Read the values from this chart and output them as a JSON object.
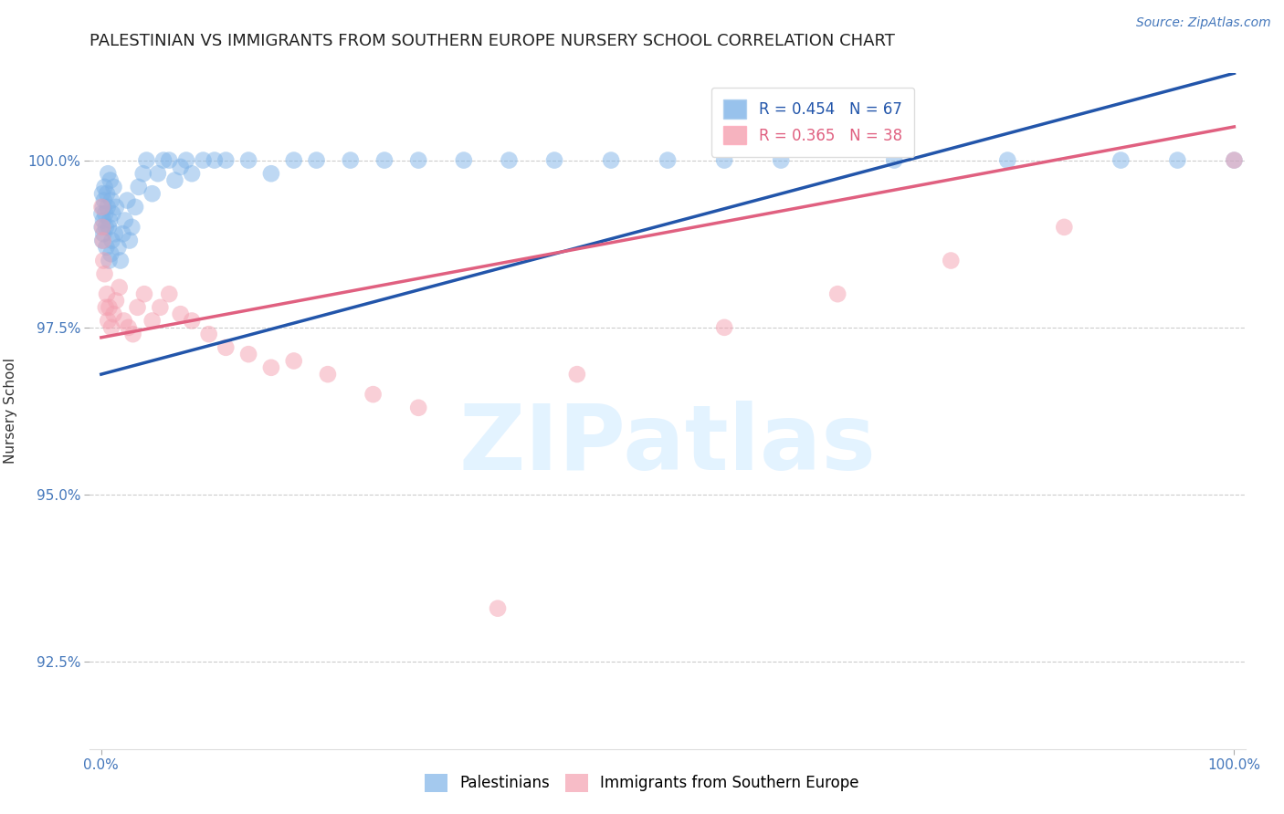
{
  "title": "PALESTINIAN VS IMMIGRANTS FROM SOUTHERN EUROPE NURSERY SCHOOL CORRELATION CHART",
  "source_text": "Source: ZipAtlas.com",
  "ylabel": "Nursery School",
  "xlim": [
    -1,
    101
  ],
  "ylim": [
    91.2,
    101.3
  ],
  "yticks": [
    92.5,
    95.0,
    97.5,
    100.0
  ],
  "ytick_labels": [
    "92.5%",
    "95.0%",
    "97.5%",
    "100.0%"
  ],
  "xtick_positions": [
    0,
    100
  ],
  "xtick_labels": [
    "0.0%",
    "100.0%"
  ],
  "blue_color": "#7EB3E8",
  "pink_color": "#F4A0B0",
  "blue_line_color": "#2255AA",
  "pink_line_color": "#E06080",
  "R_blue": 0.454,
  "N_blue": 67,
  "R_pink": 0.365,
  "N_pink": 38,
  "blue_line_x0": 0,
  "blue_line_y0": 96.8,
  "blue_line_x1": 100,
  "blue_line_y1": 101.3,
  "pink_line_x0": 0,
  "pink_line_y0": 97.35,
  "pink_line_x1": 100,
  "pink_line_y1": 100.5,
  "blue_scatter_x": [
    0.05,
    0.07,
    0.1,
    0.12,
    0.15,
    0.18,
    0.2,
    0.25,
    0.3,
    0.35,
    0.4,
    0.45,
    0.5,
    0.55,
    0.6,
    0.65,
    0.7,
    0.75,
    0.8,
    0.85,
    0.9,
    0.95,
    1.0,
    1.1,
    1.2,
    1.3,
    1.5,
    1.7,
    1.9,
    2.1,
    2.3,
    2.5,
    2.7,
    3.0,
    3.3,
    3.7,
    4.0,
    4.5,
    5.0,
    5.5,
    6.0,
    6.5,
    7.0,
    7.5,
    8.0,
    9.0,
    10.0,
    11.0,
    13.0,
    15.0,
    17.0,
    19.0,
    22.0,
    25.0,
    28.0,
    32.0,
    36.0,
    40.0,
    45.0,
    50.0,
    55.0,
    60.0,
    70.0,
    80.0,
    90.0,
    95.0,
    100.0
  ],
  "blue_scatter_y": [
    99.2,
    99.0,
    99.5,
    98.8,
    99.3,
    99.1,
    98.9,
    99.4,
    99.6,
    99.2,
    99.0,
    98.7,
    99.5,
    99.3,
    99.8,
    99.0,
    98.5,
    99.1,
    99.7,
    98.6,
    99.4,
    98.8,
    99.2,
    99.6,
    98.9,
    99.3,
    98.7,
    98.5,
    98.9,
    99.1,
    99.4,
    98.8,
    99.0,
    99.3,
    99.6,
    99.8,
    100.0,
    99.5,
    99.8,
    100.0,
    100.0,
    99.7,
    99.9,
    100.0,
    99.8,
    100.0,
    100.0,
    100.0,
    100.0,
    99.8,
    100.0,
    100.0,
    100.0,
    100.0,
    100.0,
    100.0,
    100.0,
    100.0,
    100.0,
    100.0,
    100.0,
    100.0,
    100.0,
    100.0,
    100.0,
    100.0,
    100.0
  ],
  "pink_scatter_x": [
    0.05,
    0.1,
    0.15,
    0.2,
    0.3,
    0.4,
    0.5,
    0.6,
    0.7,
    0.9,
    1.1,
    1.3,
    1.6,
    2.0,
    2.4,
    2.8,
    3.2,
    3.8,
    4.5,
    5.2,
    6.0,
    7.0,
    8.0,
    9.5,
    11.0,
    13.0,
    15.0,
    17.0,
    20.0,
    24.0,
    28.0,
    35.0,
    42.0,
    55.0,
    65.0,
    75.0,
    85.0,
    100.0
  ],
  "pink_scatter_y": [
    99.3,
    99.0,
    98.8,
    98.5,
    98.3,
    97.8,
    98.0,
    97.6,
    97.8,
    97.5,
    97.7,
    97.9,
    98.1,
    97.6,
    97.5,
    97.4,
    97.8,
    98.0,
    97.6,
    97.8,
    98.0,
    97.7,
    97.6,
    97.4,
    97.2,
    97.1,
    96.9,
    97.0,
    96.8,
    96.5,
    96.3,
    93.3,
    96.8,
    97.5,
    98.0,
    98.5,
    99.0,
    100.0
  ],
  "background_color": "#FFFFFF",
  "grid_color": "#CCCCCC",
  "legend_label_blue": "Palestinians",
  "legend_label_pink": "Immigrants from Southern Europe",
  "watermark_zip": "ZIP",
  "watermark_atlas": "atlas",
  "title_fontsize": 13,
  "axis_label_fontsize": 11,
  "tick_fontsize": 11,
  "legend_fontsize": 12,
  "source_fontsize": 10,
  "tick_color": "#4477BB"
}
